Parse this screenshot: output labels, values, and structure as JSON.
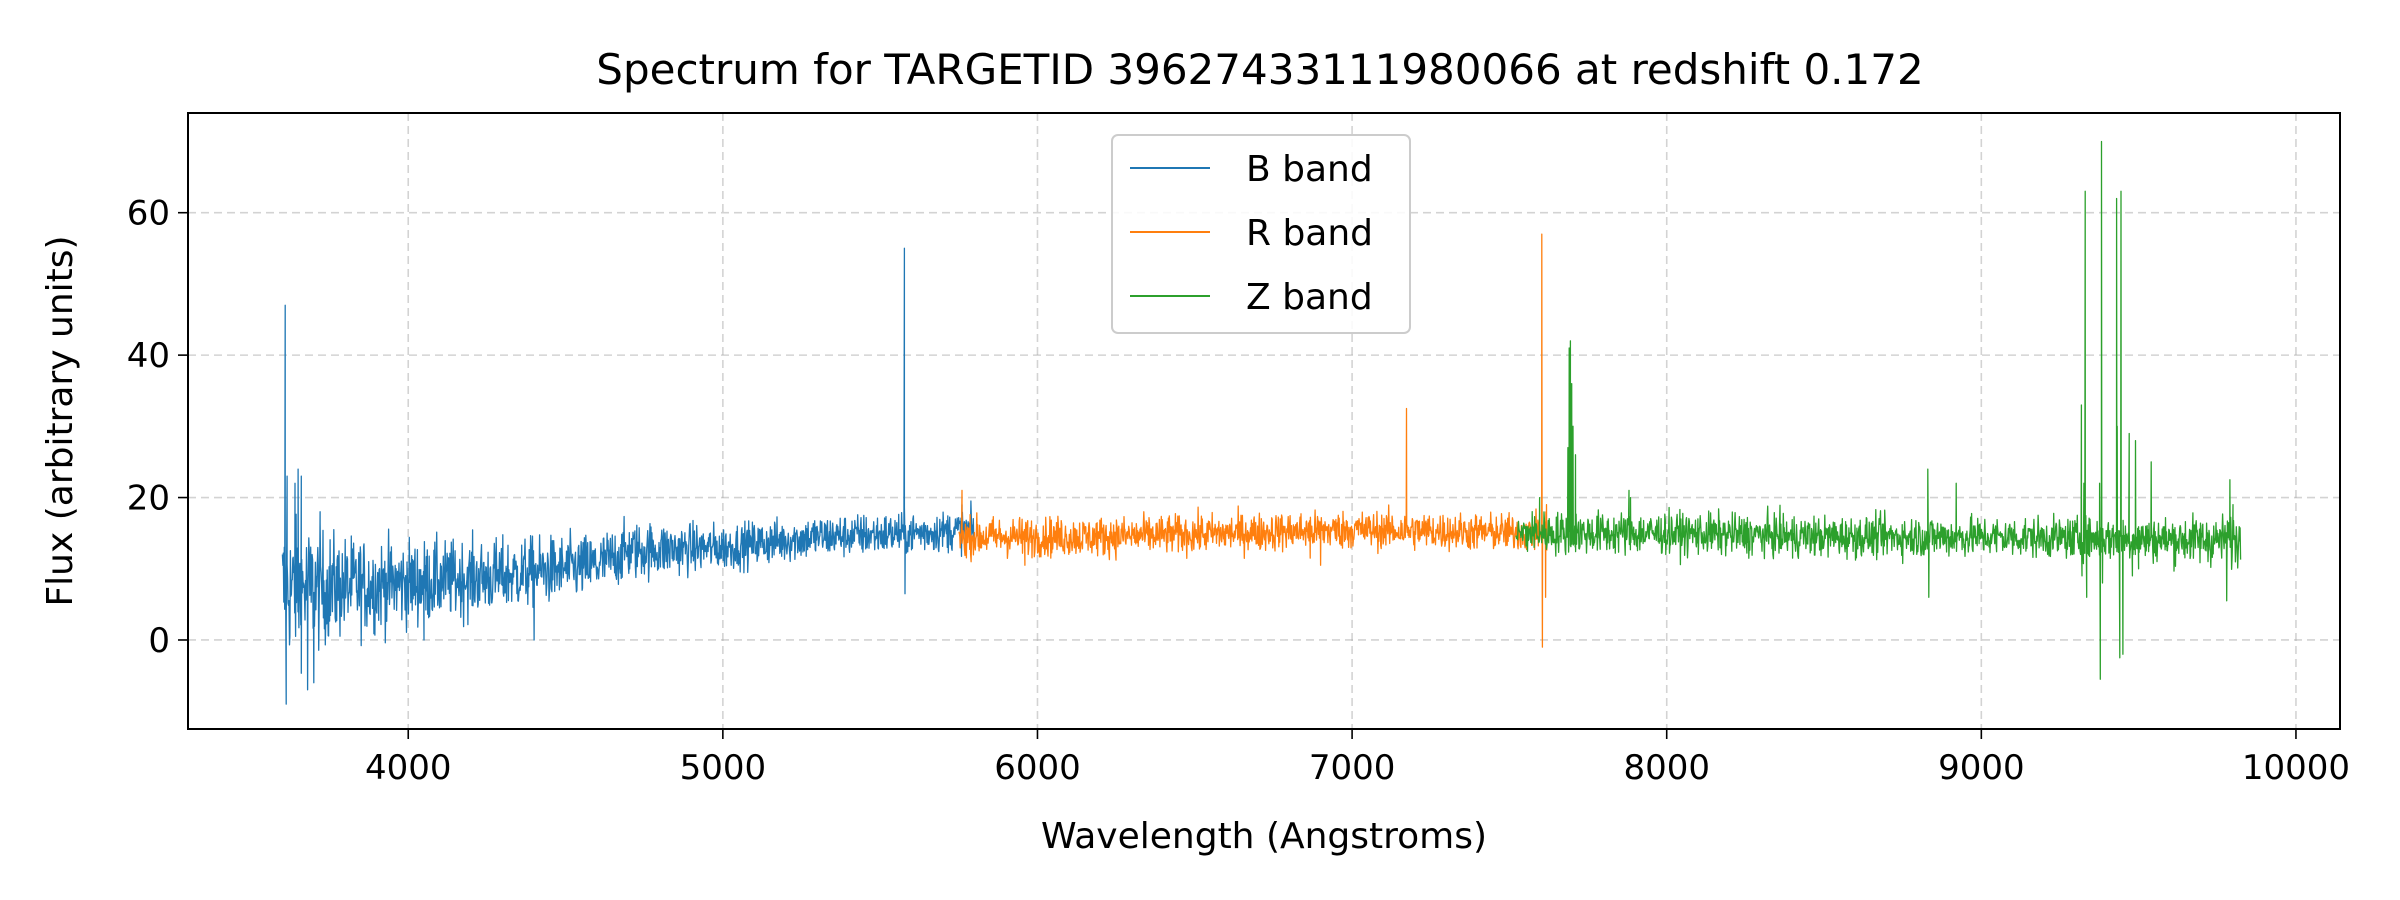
{
  "chart_data": {
    "type": "line",
    "title": "Spectrum for TARGETID 39627433111980066 at redshift 0.172",
    "xlabel": "Wavelength (Angstroms)",
    "ylabel": "Flux (arbitrary units)",
    "xlim": [
      3300,
      10140
    ],
    "ylim": [
      -12.5,
      74
    ],
    "xticks": [
      4000,
      5000,
      6000,
      7000,
      8000,
      9000,
      10000
    ],
    "yticks": [
      0,
      20,
      40,
      60
    ],
    "grid": true,
    "legend_position": "upper center",
    "series": [
      {
        "name": "B band",
        "color": "#1f77b4",
        "x_range": [
          3600,
          5800
        ],
        "baseline": [
          [
            3600,
            7
          ],
          [
            3800,
            7.5
          ],
          [
            4000,
            8
          ],
          [
            4300,
            9
          ],
          [
            4600,
            10.5
          ],
          [
            4700,
            12.5
          ],
          [
            5000,
            13
          ],
          [
            5300,
            14.5
          ],
          [
            5600,
            15
          ],
          [
            5800,
            15.5
          ]
        ],
        "noise": [
          [
            3600,
            5
          ],
          [
            3800,
            3.5
          ],
          [
            4100,
            2.8
          ],
          [
            4600,
            2.2
          ],
          [
            5000,
            1.6
          ],
          [
            5800,
            1.4
          ]
        ],
        "spikes": [
          [
            3609,
            47
          ],
          [
            3612,
            -9
          ],
          [
            3615,
            23
          ],
          [
            3640,
            22
          ],
          [
            3650,
            24
          ],
          [
            3660,
            23
          ],
          [
            3680,
            -7
          ],
          [
            3700,
            -6
          ],
          [
            3720,
            18
          ],
          [
            4050,
            0
          ],
          [
            4400,
            0
          ],
          [
            5577,
            55
          ],
          [
            5579,
            6.5
          ],
          [
            5760,
            19
          ]
        ]
      },
      {
        "name": "R band",
        "color": "#ff7f0e",
        "x_range": [
          5750,
          7620
        ],
        "baseline": [
          [
            5750,
            14.5
          ],
          [
            6200,
            14.5
          ],
          [
            6600,
            15
          ],
          [
            7000,
            15.5
          ],
          [
            7600,
            15
          ]
        ],
        "noise": [
          [
            5750,
            1.4
          ],
          [
            7620,
            1.3
          ]
        ],
        "spikes": [
          [
            5760,
            21
          ],
          [
            5960,
            10.5
          ],
          [
            6867,
            11.5
          ],
          [
            6900,
            10.5
          ],
          [
            7173,
            32.5
          ],
          [
            7603,
            57
          ],
          [
            7605,
            -1
          ],
          [
            7615,
            6
          ],
          [
            7618,
            19
          ]
        ]
      },
      {
        "name": "Z band",
        "color": "#2ca02c",
        "x_range": [
          7520,
          9825
        ],
        "baseline": [
          [
            7520,
            15
          ],
          [
            8000,
            15
          ],
          [
            8500,
            14.5
          ],
          [
            9000,
            14.5
          ],
          [
            9825,
            14
          ]
        ],
        "noise": [
          [
            7520,
            1.5
          ],
          [
            9300,
            1.4
          ],
          [
            9825,
            1.8
          ]
        ],
        "spikes": [
          [
            7596,
            20
          ],
          [
            7686,
            27
          ],
          [
            7690,
            41
          ],
          [
            7694,
            42
          ],
          [
            7698,
            36
          ],
          [
            7702,
            30
          ],
          [
            7710,
            26
          ],
          [
            7880,
            21
          ],
          [
            7885,
            20
          ],
          [
            8400,
            11.5
          ],
          [
            8830,
            24
          ],
          [
            8833,
            6
          ],
          [
            8920,
            22
          ],
          [
            9290,
            12
          ],
          [
            9318,
            33
          ],
          [
            9320,
            9
          ],
          [
            9326,
            22
          ],
          [
            9330,
            63
          ],
          [
            9335,
            6
          ],
          [
            9376,
            22
          ],
          [
            9378,
            -5.5
          ],
          [
            9382,
            70
          ],
          [
            9385,
            8
          ],
          [
            9430,
            62
          ],
          [
            9432,
            30
          ],
          [
            9440,
            -2.5
          ],
          [
            9444,
            63
          ],
          [
            9450,
            -2
          ],
          [
            9470,
            29
          ],
          [
            9480,
            9
          ],
          [
            9490,
            28
          ],
          [
            9500,
            10
          ],
          [
            9540,
            25
          ],
          [
            9780,
            5.5
          ],
          [
            9790,
            22.5
          ],
          [
            9800,
            19
          ]
        ]
      }
    ]
  }
}
